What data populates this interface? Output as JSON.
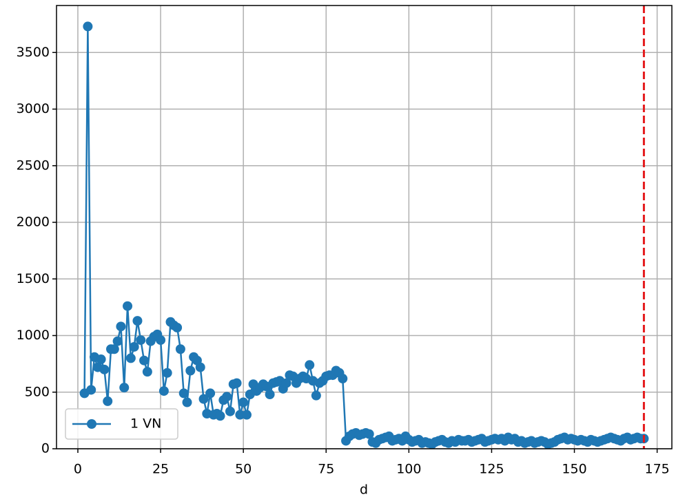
{
  "chart_data": {
    "type": "line",
    "xlabel": "d",
    "x": [
      2,
      3,
      4,
      5,
      6,
      7,
      8,
      9,
      10,
      11,
      12,
      13,
      14,
      15,
      16,
      17,
      18,
      19,
      20,
      21,
      22,
      23,
      24,
      25,
      26,
      27,
      28,
      29,
      30,
      31,
      32,
      33,
      34,
      35,
      36,
      37,
      38,
      39,
      40,
      41,
      42,
      43,
      44,
      45,
      46,
      47,
      48,
      49,
      50,
      51,
      52,
      53,
      54,
      55,
      56,
      57,
      58,
      59,
      60,
      61,
      62,
      63,
      64,
      65,
      66,
      67,
      68,
      69,
      70,
      71,
      72,
      73,
      74,
      75,
      76,
      77,
      78,
      79,
      80,
      81,
      82,
      83,
      84,
      85,
      86,
      87,
      88,
      89,
      90,
      91,
      92,
      93,
      94,
      95,
      96,
      97,
      98,
      99,
      100,
      101,
      102,
      103,
      104,
      105,
      106,
      107,
      108,
      109,
      110,
      111,
      112,
      113,
      114,
      115,
      116,
      117,
      118,
      119,
      120,
      121,
      122,
      123,
      124,
      125,
      126,
      127,
      128,
      129,
      130,
      131,
      132,
      133,
      134,
      135,
      136,
      137,
      138,
      139,
      140,
      141,
      142,
      143,
      144,
      145,
      146,
      147,
      148,
      149,
      150,
      151,
      152,
      153,
      154,
      155,
      156,
      157,
      158,
      159,
      160,
      161,
      162,
      163,
      164,
      165,
      166,
      167,
      168,
      169,
      170,
      171
    ],
    "series": [
      {
        "name": "1 VN",
        "color": "#1f77b4",
        "values": [
          490,
          3730,
          520,
          810,
          720,
          790,
          700,
          420,
          880,
          880,
          950,
          1080,
          540,
          1260,
          800,
          900,
          1130,
          960,
          780,
          680,
          950,
          990,
          1010,
          960,
          510,
          670,
          1120,
          1090,
          1070,
          880,
          490,
          410,
          690,
          810,
          780,
          720,
          440,
          310,
          490,
          300,
          310,
          290,
          430,
          460,
          330,
          570,
          580,
          300,
          410,
          300,
          480,
          570,
          510,
          540,
          570,
          550,
          480,
          580,
          590,
          600,
          530,
          580,
          650,
          640,
          580,
          620,
          640,
          620,
          740,
          600,
          470,
          580,
          600,
          640,
          650,
          650,
          690,
          670,
          620,
          70,
          110,
          130,
          140,
          120,
          130,
          140,
          130,
          60,
          50,
          80,
          90,
          100,
          110,
          70,
          80,
          90,
          70,
          110,
          80,
          60,
          70,
          80,
          50,
          60,
          50,
          40,
          60,
          70,
          80,
          60,
          50,
          70,
          60,
          80,
          70,
          70,
          80,
          60,
          70,
          80,
          90,
          60,
          70,
          80,
          90,
          80,
          90,
          70,
          100,
          80,
          90,
          60,
          70,
          50,
          60,
          70,
          50,
          60,
          70,
          60,
          40,
          50,
          60,
          80,
          90,
          100,
          80,
          90,
          80,
          70,
          80,
          70,
          60,
          80,
          70,
          60,
          70,
          80,
          90,
          100,
          90,
          80,
          70,
          90,
          100,
          80,
          90,
          100,
          90,
          90
        ]
      }
    ],
    "xlim": [
      -6.45,
      179.45
    ],
    "ylim": [
      0,
      3915
    ],
    "xticks": [
      0,
      25,
      50,
      75,
      100,
      125,
      150,
      175
    ],
    "yticks": [
      0,
      500,
      1000,
      1500,
      2000,
      2500,
      3000,
      3500
    ],
    "grid": true,
    "legend": "lower left",
    "vline": {
      "x": 171,
      "color": "#e41a1c"
    }
  }
}
